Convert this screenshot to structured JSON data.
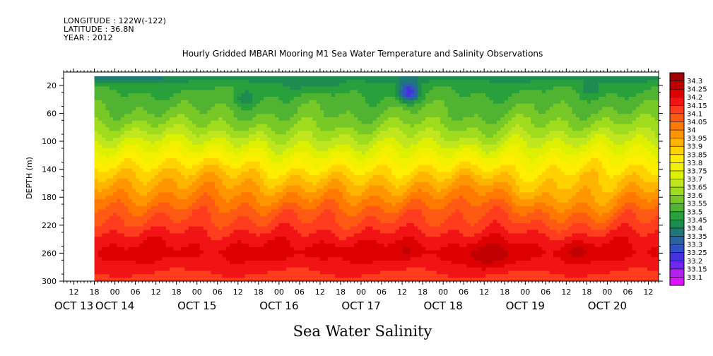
{
  "header": {
    "longitude": "LONGITUDE : 122W(-122)",
    "latitude": "LATITUDE : 36.8N",
    "year": "YEAR : 2012"
  },
  "chart_data": {
    "type": "heatmap",
    "title": "Hourly Gridded MBARI Mooring M1 Sea Water Temperature and Salinity Observations",
    "xlabel": "Sea Water Salinity",
    "ylabel": "DEPTH (m)",
    "ylim": [
      300,
      1
    ],
    "y_ticks": [
      20,
      60,
      100,
      140,
      180,
      220,
      260,
      300
    ],
    "x_start_hour": "2012-10-13T09:00",
    "x_end_hour": "2012-10-20T15:00",
    "data_start_hour": "2012-10-13T18:00",
    "x_hour_ticks": [
      "12",
      "18",
      "00",
      "06",
      "12",
      "18",
      "00",
      "06",
      "12",
      "18",
      "00",
      "06",
      "12",
      "18",
      "00",
      "06",
      "12",
      "18",
      "00",
      "06",
      "12",
      "18",
      "00",
      "06",
      "12",
      "18",
      "00",
      "06",
      "12",
      "18",
      "00",
      "06"
    ],
    "x_day_labels": [
      "OCT 13",
      "OCT 14",
      "OCT 15",
      "OCT 16",
      "OCT 17",
      "OCT 18",
      "OCT 19",
      "OCT 20"
    ],
    "colorbar_levels": [
      "34.3",
      "34.25",
      "34.2",
      "34.15",
      "34.1",
      "34.05",
      "34",
      "33.95",
      "33.9",
      "33.85",
      "33.8",
      "33.75",
      "33.7",
      "33.65",
      "33.6",
      "33.55",
      "33.5",
      "33.45",
      "33.4",
      "33.35",
      "33.3",
      "33.25",
      "33.2",
      "33.15",
      "33.1"
    ],
    "colorbar_colors": [
      "#a00000",
      "#c00000",
      "#dd0000",
      "#f01414",
      "#ff3c1e",
      "#ff5a14",
      "#ff7800",
      "#ff9600",
      "#ffb400",
      "#ffd200",
      "#ffee00",
      "#f0f000",
      "#dcf000",
      "#c0e61e",
      "#a0dc1e",
      "#78c828",
      "#50b432",
      "#28a03c",
      "#1e8c50",
      "#1e7878",
      "#2864a0",
      "#3250c8",
      "#4632dc",
      "#6e28f0",
      "#b41ef0",
      "#dc14ff"
    ],
    "depth_profile": [
      {
        "depth": 8,
        "value": 33.42
      },
      {
        "depth": 20,
        "value": 33.48
      },
      {
        "depth": 40,
        "value": 33.52
      },
      {
        "depth": 60,
        "value": 33.56
      },
      {
        "depth": 80,
        "value": 33.62
      },
      {
        "depth": 100,
        "value": 33.7
      },
      {
        "depth": 120,
        "value": 33.78
      },
      {
        "depth": 140,
        "value": 33.86
      },
      {
        "depth": 160,
        "value": 33.93
      },
      {
        "depth": 180,
        "value": 34.0
      },
      {
        "depth": 200,
        "value": 34.07
      },
      {
        "depth": 220,
        "value": 34.12
      },
      {
        "depth": 240,
        "value": 34.18
      },
      {
        "depth": 260,
        "value": 34.22
      },
      {
        "depth": 280,
        "value": 34.17
      },
      {
        "depth": 300,
        "value": 34.12
      }
    ],
    "perturbations": [
      {
        "time": "2012-10-15T14:00",
        "depth": 40,
        "amp": -0.08,
        "t_width_h": 3,
        "d_width": 12
      },
      {
        "time": "2012-10-17T14:00",
        "depth": 30,
        "amp": -0.28,
        "t_width_h": 3,
        "d_width": 14
      },
      {
        "time": "2012-10-19T19:00",
        "depth": 25,
        "amp": -0.06,
        "t_width_h": 3,
        "d_width": 10
      },
      {
        "time": "2012-10-14T00:00",
        "depth": 10,
        "amp": -0.08,
        "t_width_h": 10,
        "d_width": 8
      },
      {
        "time": "2012-10-16T12:00",
        "depth": 20,
        "amp": -0.06,
        "t_width_h": 8,
        "d_width": 10
      },
      {
        "time": "2012-10-15T00:00",
        "depth": 140,
        "amp": 0.05,
        "t_width_h": 10,
        "d_width": 40
      },
      {
        "time": "2012-10-16T00:00",
        "depth": 100,
        "amp": -0.05,
        "t_width_h": 8,
        "d_width": 50
      },
      {
        "time": "2012-10-17T00:00",
        "depth": 110,
        "amp": -0.05,
        "t_width_h": 8,
        "d_width": 50
      },
      {
        "time": "2012-10-18T12:00",
        "depth": 100,
        "amp": -0.07,
        "t_width_h": 6,
        "d_width": 40
      },
      {
        "time": "2012-10-18T12:00",
        "depth": 180,
        "amp": 0.06,
        "t_width_h": 6,
        "d_width": 40
      },
      {
        "time": "2012-10-19T06:00",
        "depth": 180,
        "amp": -0.08,
        "t_width_h": 8,
        "d_width": 40
      },
      {
        "time": "2012-10-19T21:00",
        "depth": 190,
        "amp": -0.06,
        "t_width_h": 5,
        "d_width": 35
      },
      {
        "time": "2012-10-18T14:00",
        "depth": 265,
        "amp": 0.06,
        "t_width_h": 8,
        "d_width": 20
      },
      {
        "time": "2012-10-19T15:00",
        "depth": 258,
        "amp": 0.04,
        "t_width_h": 6,
        "d_width": 12
      },
      {
        "time": "2012-10-16T14:00",
        "depth": 255,
        "amp": 0.035,
        "t_width_h": 6,
        "d_width": 10
      },
      {
        "time": "2012-10-17T15:00",
        "depth": 255,
        "amp": 0.035,
        "t_width_h": 5,
        "d_width": 10
      }
    ]
  }
}
